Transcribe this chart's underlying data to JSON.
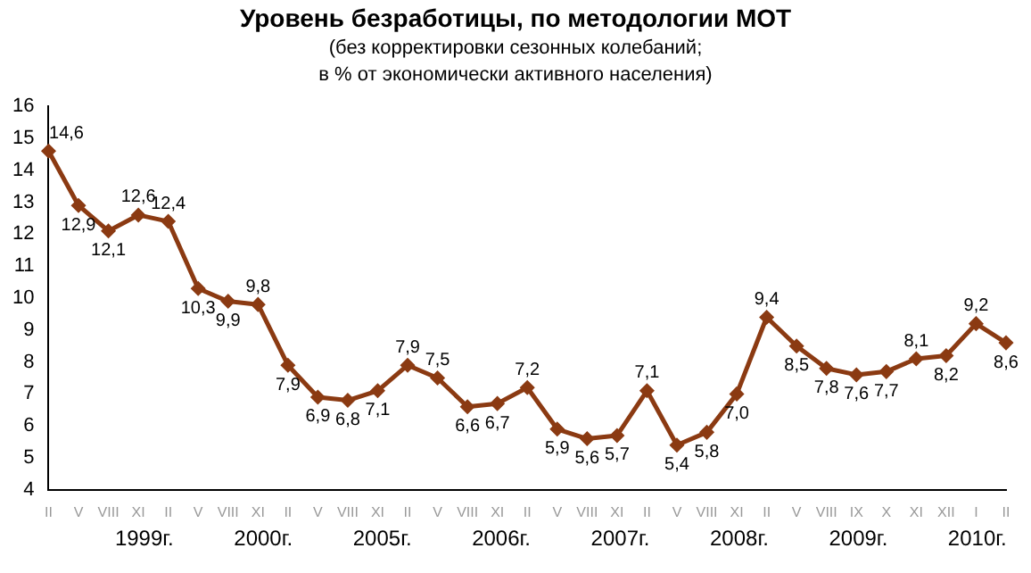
{
  "chart_data": {
    "type": "line",
    "title": "Уровень безработицы, по методологии МОТ",
    "subtitle": "(без корректировки сезонных колебаний;\nв % от экономически активного населения)",
    "categories": [
      "II",
      "V",
      "VIII",
      "XI",
      "II",
      "V",
      "VIII",
      "XI",
      "II",
      "V",
      "VIII",
      "XI",
      "II",
      "V",
      "VIII",
      "XI",
      "II",
      "V",
      "VIII",
      "XI",
      "II",
      "V",
      "VIII",
      "XI",
      "II",
      "V",
      "VIII",
      "IX",
      "X",
      "XI",
      "XII",
      "I",
      "II"
    ],
    "series": [
      {
        "color": "#8b3a12",
        "values": [
          14.6,
          12.9,
          12.1,
          12.6,
          12.4,
          10.3,
          9.9,
          9.8,
          7.9,
          6.9,
          6.8,
          7.1,
          7.9,
          7.5,
          6.6,
          6.7,
          7.2,
          5.9,
          5.6,
          5.7,
          7.1,
          5.4,
          5.8,
          7.0,
          9.4,
          8.5,
          7.8,
          7.6,
          7.7,
          8.1,
          8.2,
          9.2,
          8.6
        ],
        "value_labels": [
          "14,6",
          "12,9",
          "12,1",
          "12,6",
          "12,4",
          "10,3",
          "9,9",
          "9,8",
          "7,9",
          "6,9",
          "6,8",
          "7,1",
          "7,9",
          "7,5",
          "6,6",
          "6,7",
          "7,2",
          "5,9",
          "5,6",
          "5,7",
          "7,1",
          "5,4",
          "5,8",
          "7,0",
          "9,4",
          "8,5",
          "7,8",
          "7,6",
          "7,7",
          "8,1",
          "8,2",
          "9,2",
          "8,6"
        ]
      }
    ],
    "annotations": [
      "1999г.",
      "2000г.",
      "2005г.",
      "2006г.",
      "2007г.",
      "2008г.",
      "2009г.",
      "2010г."
    ],
    "ylim": [
      4,
      16
    ],
    "yticks": [
      4,
      5,
      6,
      7,
      8,
      9,
      10,
      11,
      12,
      13,
      14,
      15,
      16
    ],
    "grid": false,
    "legend": false,
    "marker": "diamond",
    "line_style": "solid"
  }
}
